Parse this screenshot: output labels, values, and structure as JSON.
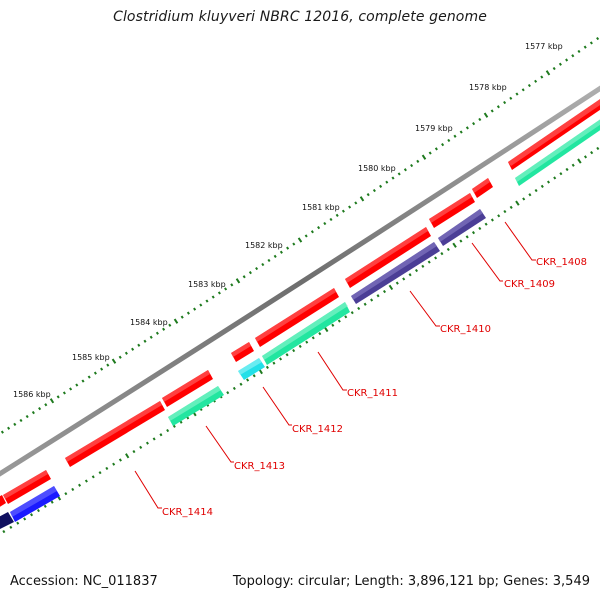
{
  "title": "Clostridium kluyveri NBRC 12016, complete genome",
  "accession": "Accession: NC_011837",
  "summary": "Topology: circular; Length: 3,896,121 bp; Genes: 3,549",
  "colors": {
    "backbone": "#808080",
    "ticks": "#1e7a1e",
    "red": "#ff0000",
    "green": "#22e6a0",
    "navy": "#4b3e96",
    "cyan": "#22e0e8",
    "blue": "#1a1aff",
    "dark_navy": "#101060",
    "label": "#e00000"
  },
  "kbp_labels": [
    "1577 kbp",
    "1578 kbp",
    "1579 kbp",
    "1580 kbp",
    "1581 kbp",
    "1582 kbp",
    "1583 kbp",
    "1584 kbp",
    "1585 kbp",
    "1586 kbp"
  ],
  "gene_labels": [
    "CKR_1408",
    "CKR_1409",
    "CKR_1410",
    "CKR_1411",
    "CKR_1412",
    "CKR_1413",
    "CKR_1414"
  ]
}
